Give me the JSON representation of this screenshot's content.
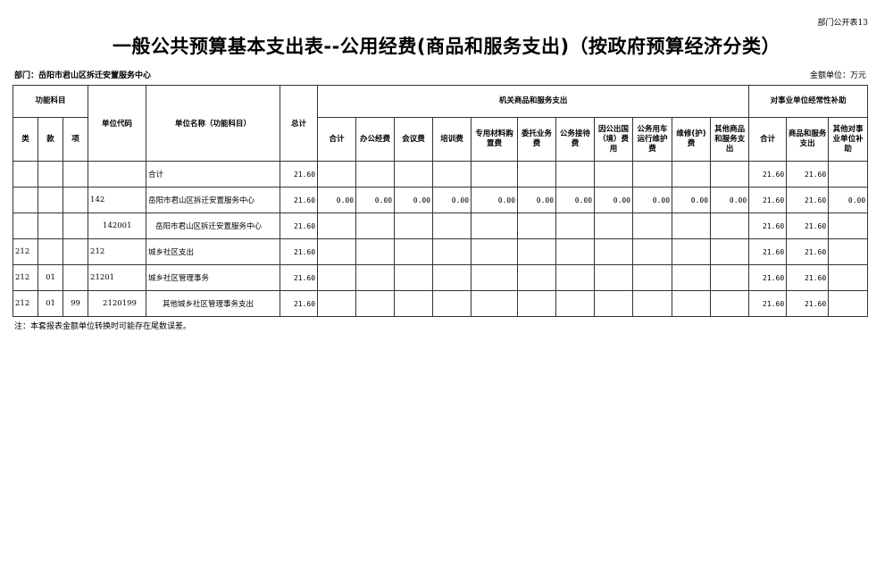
{
  "form_code": "部门公开表13",
  "title": "一般公共预算基本支出表--公用经费(商品和服务支出)（按政府预算经济分类）",
  "department": "部门：岳阳市君山区拆迁安置服务中心",
  "unit": "金额单位：万元",
  "headers": {
    "func": "功能科目",
    "lei": "类",
    "kuan": "款",
    "xiang": "项",
    "code": "单位代码",
    "name": "单位名称（功能科目）",
    "total": "总计",
    "group1": "机关商品和服务支出",
    "group2": "对事业单位经常性补助",
    "g1": [
      "合计",
      "办公经费",
      "会议费",
      "培训费",
      "专用材料购置费",
      "委托业务费",
      "公务接待费",
      "因公出国（境）费用",
      "公务用车运行维护费",
      "维修(护)费",
      "其他商品和服务支出"
    ],
    "g2": [
      "合计",
      "商品和服务支出",
      "其他对事业单位补助"
    ]
  },
  "rows": [
    {
      "lei": "",
      "kuan": "",
      "xiang": "",
      "code": "",
      "name": "合计",
      "indent": 0,
      "total": "21.60",
      "g1": [
        "",
        "",
        "",
        "",
        "",
        "",
        "",
        "",
        "",
        "",
        ""
      ],
      "g2": [
        "21.60",
        "21.60",
        ""
      ]
    },
    {
      "lei": "",
      "kuan": "",
      "xiang": "",
      "code": "142",
      "name": "岳阳市君山区拆迁安置服务中心",
      "indent": 0,
      "total": "21.60",
      "g1": [
        "0.00",
        "0.00",
        "0.00",
        "0.00",
        "0.00",
        "0.00",
        "0.00",
        "0.00",
        "0.00",
        "0.00",
        "0.00"
      ],
      "g2": [
        "21.60",
        "21.60",
        "0.00"
      ]
    },
    {
      "lei": "",
      "kuan": "",
      "xiang": "",
      "code": "142001",
      "name": "岳阳市君山区拆迁安置服务中心",
      "indent": 1,
      "total": "21.60",
      "g1": [
        "",
        "",
        "",
        "",
        "",
        "",
        "",
        "",
        "",
        "",
        ""
      ],
      "g2": [
        "21.60",
        "21.60",
        ""
      ]
    },
    {
      "lei": "212",
      "kuan": "",
      "xiang": "",
      "code": "212",
      "name": "城乡社区支出",
      "indent": 0,
      "total": "21.60",
      "g1": [
        "",
        "",
        "",
        "",
        "",
        "",
        "",
        "",
        "",
        "",
        ""
      ],
      "g2": [
        "21.60",
        "21.60",
        ""
      ]
    },
    {
      "lei": "212",
      "kuan": "01",
      "xiang": "",
      "code": "21201",
      "name": "城乡社区管理事务",
      "indent": 0,
      "total": "21.60",
      "g1": [
        "",
        "",
        "",
        "",
        "",
        "",
        "",
        "",
        "",
        "",
        ""
      ],
      "g2": [
        "21.60",
        "21.60",
        ""
      ]
    },
    {
      "lei": "212",
      "kuan": "01",
      "xiang": "99",
      "code": "2120199",
      "name": "其他城乡社区管理事务支出",
      "indent": 2,
      "total": "21.60",
      "g1": [
        "",
        "",
        "",
        "",
        "",
        "",
        "",
        "",
        "",
        "",
        ""
      ],
      "g2": [
        "21.60",
        "21.60",
        ""
      ]
    }
  ],
  "note": "注：本套报表金额单位转换时可能存在尾数误差。"
}
